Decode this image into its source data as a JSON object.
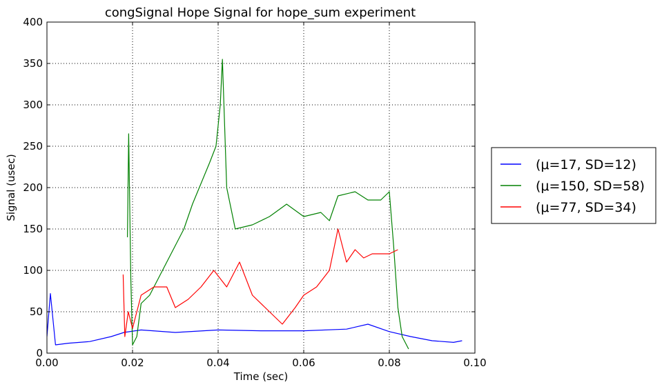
{
  "chart_data": {
    "type": "line",
    "title": "congSignal Hope Signal for hope_sum experiment",
    "xlabel": "Time (sec)",
    "ylabel": "Signal (usec)",
    "xlim": [
      0.0,
      0.1
    ],
    "ylim": [
      0,
      400
    ],
    "xticks": [
      0.0,
      0.02,
      0.04,
      0.06,
      0.08,
      0.1
    ],
    "xtick_labels": [
      "0.00",
      "0.02",
      "0.04",
      "0.06",
      "0.08",
      "0.10"
    ],
    "yticks": [
      0,
      50,
      100,
      150,
      200,
      250,
      300,
      350,
      400
    ],
    "ytick_labels": [
      "0",
      "50",
      "100",
      "150",
      "200",
      "250",
      "300",
      "350",
      "400"
    ],
    "grid": true,
    "legend_position": "outside-right",
    "series": [
      {
        "name": "(μ=17, SD=12)",
        "color": "#0000ff",
        "points": [
          [
            0.0,
            20
          ],
          [
            0.0008,
            72
          ],
          [
            0.002,
            10
          ],
          [
            0.005,
            12
          ],
          [
            0.01,
            14
          ],
          [
            0.015,
            20
          ],
          [
            0.018,
            25
          ],
          [
            0.022,
            28
          ],
          [
            0.03,
            25
          ],
          [
            0.04,
            28
          ],
          [
            0.05,
            27
          ],
          [
            0.06,
            27
          ],
          [
            0.07,
            29
          ],
          [
            0.075,
            35
          ],
          [
            0.08,
            26
          ],
          [
            0.085,
            20
          ],
          [
            0.09,
            15
          ],
          [
            0.095,
            13
          ],
          [
            0.097,
            15
          ]
        ]
      },
      {
        "name": "(μ=150, SD=58)",
        "color": "#008000",
        "points": [
          [
            0.0188,
            140
          ],
          [
            0.0191,
            265
          ],
          [
            0.0196,
            90
          ],
          [
            0.02,
            10
          ],
          [
            0.021,
            20
          ],
          [
            0.022,
            60
          ],
          [
            0.024,
            70
          ],
          [
            0.026,
            90
          ],
          [
            0.028,
            110
          ],
          [
            0.03,
            130
          ],
          [
            0.032,
            150
          ],
          [
            0.034,
            180
          ],
          [
            0.036,
            205
          ],
          [
            0.038,
            230
          ],
          [
            0.0395,
            250
          ],
          [
            0.0405,
            300
          ],
          [
            0.041,
            355
          ],
          [
            0.042,
            200
          ],
          [
            0.044,
            150
          ],
          [
            0.048,
            155
          ],
          [
            0.052,
            165
          ],
          [
            0.056,
            180
          ],
          [
            0.06,
            165
          ],
          [
            0.064,
            170
          ],
          [
            0.066,
            160
          ],
          [
            0.068,
            190
          ],
          [
            0.072,
            195
          ],
          [
            0.075,
            185
          ],
          [
            0.078,
            185
          ],
          [
            0.08,
            195
          ],
          [
            0.081,
            130
          ],
          [
            0.082,
            55
          ],
          [
            0.083,
            20
          ],
          [
            0.0845,
            5
          ]
        ]
      },
      {
        "name": "(μ=77, SD=34)",
        "color": "#ff0000",
        "points": [
          [
            0.0178,
            95
          ],
          [
            0.0182,
            20
          ],
          [
            0.019,
            50
          ],
          [
            0.02,
            30
          ],
          [
            0.022,
            70
          ],
          [
            0.025,
            80
          ],
          [
            0.028,
            80
          ],
          [
            0.03,
            55
          ],
          [
            0.033,
            65
          ],
          [
            0.036,
            80
          ],
          [
            0.039,
            100
          ],
          [
            0.042,
            80
          ],
          [
            0.045,
            110
          ],
          [
            0.048,
            70
          ],
          [
            0.052,
            50
          ],
          [
            0.055,
            35
          ],
          [
            0.058,
            55
          ],
          [
            0.06,
            70
          ],
          [
            0.063,
            80
          ],
          [
            0.066,
            100
          ],
          [
            0.068,
            150
          ],
          [
            0.07,
            110
          ],
          [
            0.072,
            125
          ],
          [
            0.074,
            115
          ],
          [
            0.076,
            120
          ],
          [
            0.078,
            120
          ],
          [
            0.08,
            120
          ],
          [
            0.082,
            125
          ]
        ]
      }
    ]
  }
}
